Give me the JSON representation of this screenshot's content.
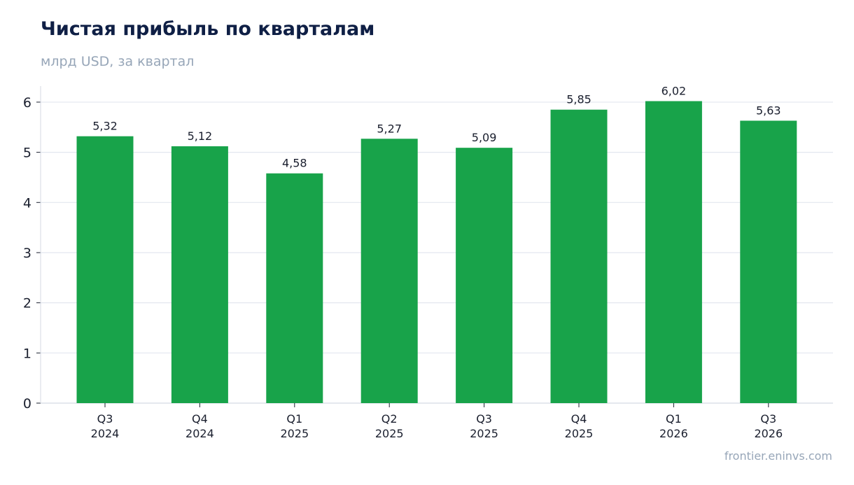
{
  "chart_data": {
    "type": "bar",
    "title": "Чистая прибыль по кварталам",
    "subtitle": "млрд USD, за квартал",
    "categories": [
      [
        "Q3",
        "2024"
      ],
      [
        "Q4",
        "2024"
      ],
      [
        "Q1",
        "2025"
      ],
      [
        "Q2",
        "2025"
      ],
      [
        "Q3",
        "2025"
      ],
      [
        "Q4",
        "2025"
      ],
      [
        "Q1",
        "2026"
      ],
      [
        "Q3",
        "2026"
      ]
    ],
    "values": [
      5.32,
      5.12,
      4.58,
      5.27,
      5.09,
      5.85,
      6.02,
      5.63
    ],
    "value_labels": [
      "5,32",
      "5,12",
      "4,58",
      "5,27",
      "5,09",
      "5,85",
      "6,02",
      "5,63"
    ],
    "yticks": [
      0,
      1,
      2,
      3,
      4,
      5,
      6
    ],
    "ylim": [
      0,
      6.32
    ],
    "xlabel": "",
    "ylabel": "",
    "grid": true,
    "bar_color": "#18a34a"
  },
  "source": "frontier.eninvs.com"
}
